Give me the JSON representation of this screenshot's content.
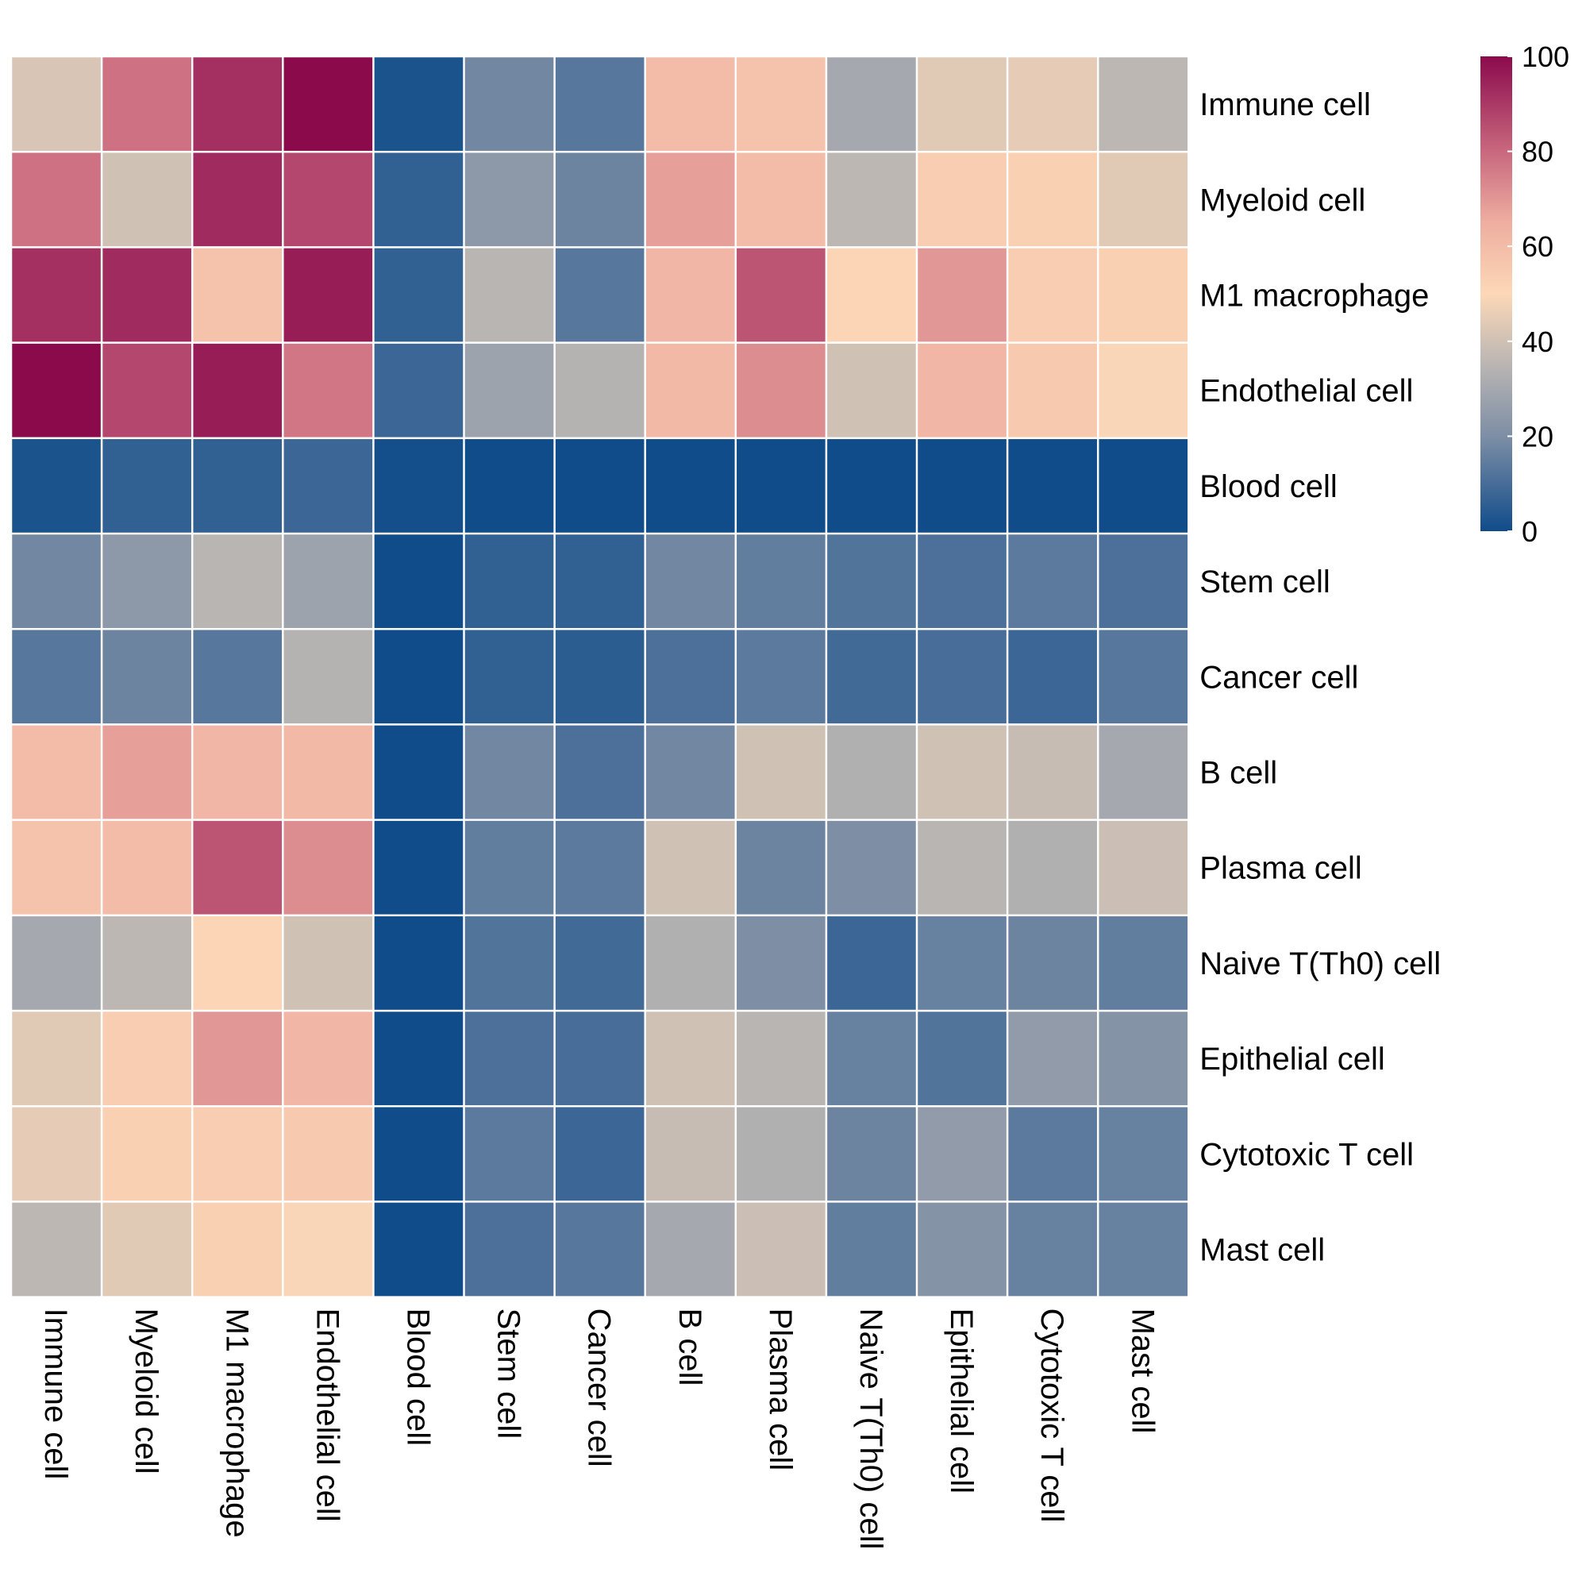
{
  "chart_data": {
    "type": "heatmap",
    "title": "",
    "xlabel": "",
    "ylabel": "",
    "rows": [
      "Immune cell",
      "Myeloid cell",
      "M1 macrophage",
      "Endothelial cell",
      "Blood cell",
      "Stem cell",
      "Cancer cell",
      "B cell",
      "Plasma cell",
      "Naive T(Th0) cell",
      "Epithelial cell",
      "Cytotoxic T cell",
      "Mast cell"
    ],
    "columns": [
      "Immune cell",
      "Myeloid cell",
      "M1 macrophage",
      "Endothelial cell",
      "Blood cell",
      "Stem cell",
      "Cancer cell",
      "B cell",
      "Plasma cell",
      "Naive T(Th0) cell",
      "Epithelial cell",
      "Cytotoxic T cell",
      "Mast cell"
    ],
    "values": [
      [
        42,
        78,
        92,
        100,
        2,
        18,
        13,
        60,
        58,
        30,
        44,
        45,
        36
      ],
      [
        78,
        40,
        93,
        87,
        6,
        24,
        17,
        68,
        60,
        36,
        54,
        53,
        44
      ],
      [
        92,
        93,
        58,
        96,
        6,
        35,
        13,
        62,
        84,
        51,
        70,
        54,
        53
      ],
      [
        100,
        87,
        96,
        77,
        8,
        28,
        34,
        61,
        72,
        40,
        62,
        55,
        49
      ],
      [
        2,
        6,
        6,
        8,
        1,
        0,
        0,
        0,
        0,
        0,
        0,
        0,
        0
      ],
      [
        18,
        24,
        35,
        28,
        0,
        6,
        6,
        18,
        15,
        12,
        11,
        14,
        11
      ],
      [
        13,
        17,
        13,
        34,
        0,
        6,
        5,
        11,
        14,
        9,
        10,
        8,
        13
      ],
      [
        60,
        68,
        62,
        61,
        0,
        18,
        11,
        18,
        40,
        33,
        40,
        38,
        30
      ],
      [
        58,
        60,
        84,
        72,
        0,
        15,
        14,
        40,
        17,
        20,
        35,
        33,
        39
      ],
      [
        30,
        36,
        51,
        40,
        0,
        12,
        9,
        33,
        20,
        8,
        16,
        17,
        15
      ],
      [
        44,
        54,
        70,
        62,
        0,
        11,
        10,
        40,
        35,
        16,
        12,
        25,
        22
      ],
      [
        45,
        53,
        54,
        55,
        0,
        14,
        8,
        38,
        33,
        17,
        25,
        14,
        16
      ],
      [
        36,
        44,
        53,
        49,
        0,
        11,
        13,
        30,
        39,
        15,
        22,
        16,
        16
      ]
    ],
    "color_scale": {
      "min": 0,
      "max": 100,
      "stops": [
        {
          "value": 0,
          "color": "#104c8a"
        },
        {
          "value": 20,
          "color": "#7d8ea5"
        },
        {
          "value": 35,
          "color": "#b9b5b3"
        },
        {
          "value": 50,
          "color": "#fcd8b7"
        },
        {
          "value": 65,
          "color": "#eeaea0"
        },
        {
          "value": 80,
          "color": "#c8687e"
        },
        {
          "value": 100,
          "color": "#8b0a4c"
        }
      ],
      "legend_ticks": [
        "0",
        "20",
        "40",
        "60",
        "80",
        "100"
      ],
      "legend_position": "top-right"
    },
    "grid_color": "#ffffff"
  }
}
